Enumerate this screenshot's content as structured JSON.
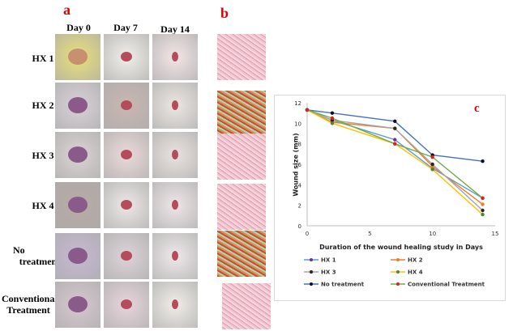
{
  "panels": {
    "a": "a",
    "b": "b",
    "c": "c"
  },
  "columns": [
    "Day 0",
    "Day 7",
    "Day 14"
  ],
  "rows": [
    [
      "HX 1"
    ],
    [
      "HX 2"
    ],
    [
      "HX 3"
    ],
    [
      "HX 4"
    ],
    [
      "No",
      "treatment"
    ],
    [
      "Conventional",
      "Treatment"
    ]
  ],
  "chart_data": {
    "type": "line",
    "xlabel": "Duration of the wound healing study in Days",
    "ylabel": "Wound size (mm)",
    "xlim": [
      0,
      15
    ],
    "ylim": [
      0,
      12
    ],
    "xticks": [
      0,
      5,
      10,
      15
    ],
    "yticks": [
      0,
      2,
      4,
      6,
      8,
      10,
      12
    ],
    "grid": false,
    "legend": "bottom",
    "x": [
      0,
      2,
      7,
      10,
      14
    ],
    "series": [
      {
        "name": "HX 1",
        "values": [
          11.3,
          10.3,
          8.4,
          5.6,
          2.7
        ],
        "line_color": "#5b9bd5",
        "marker_color": "#7030a0"
      },
      {
        "name": "HX 2",
        "values": [
          11.3,
          10.1,
          9.5,
          5.8,
          2.1
        ],
        "line_color": "#ed7d31",
        "marker_color": "#ed7d31"
      },
      {
        "name": "HX 3",
        "values": [
          11.3,
          10.3,
          9.5,
          6.0,
          1.5
        ],
        "line_color": "#a5a5a5",
        "marker_color": "#262626"
      },
      {
        "name": "HX 4",
        "values": [
          11.3,
          10.0,
          8.0,
          5.5,
          1.1
        ],
        "line_color": "#ffc000",
        "marker_color": "#548235"
      },
      {
        "name": "No treatment",
        "values": [
          11.3,
          11.0,
          10.2,
          6.9,
          6.3
        ],
        "line_color": "#4472c4",
        "marker_color": "#0d0d26"
      },
      {
        "name": "Conventional Treatment",
        "values": [
          11.3,
          10.5,
          8.0,
          6.7,
          2.7
        ],
        "line_color": "#70ad47",
        "marker_color": "#e02020"
      }
    ]
  }
}
